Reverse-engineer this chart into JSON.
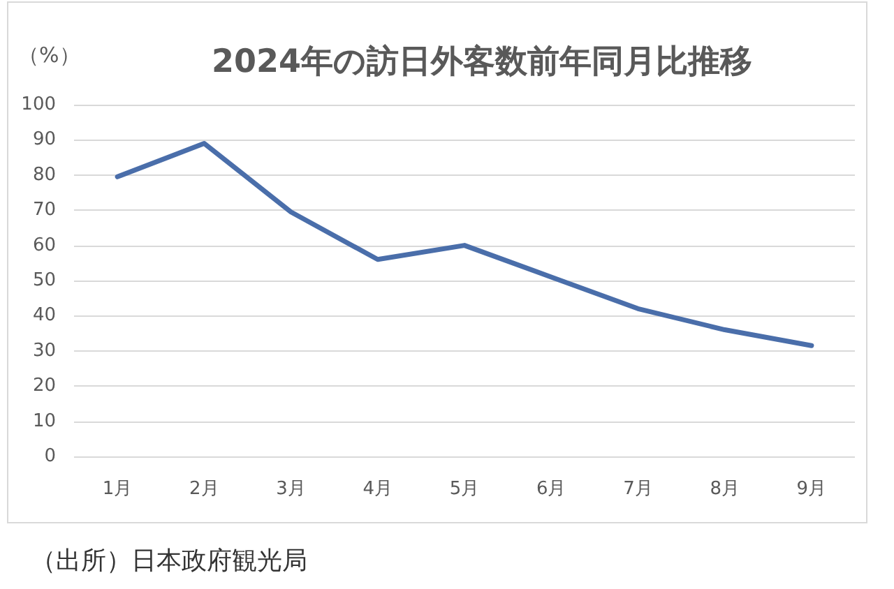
{
  "chart_data": {
    "type": "line",
    "title": "2024年の訪日外客数前年同月比推移",
    "ylabel": "（%）",
    "categories": [
      "1月",
      "2月",
      "3月",
      "4月",
      "5月",
      "6月",
      "7月",
      "8月",
      "9月"
    ],
    "series": [
      {
        "color": "#4a6eaa",
        "values": [
          79.5,
          89,
          69.5,
          56,
          60,
          51,
          42,
          36,
          31.5
        ]
      }
    ],
    "ylim": [
      0,
      100
    ],
    "yticks": [
      0,
      10,
      20,
      30,
      40,
      50,
      60,
      70,
      80,
      90,
      100
    ],
    "grid": "y",
    "marker": "none",
    "line_style": "solid",
    "annotations": [
      "（出所）日本政府観光局"
    ]
  }
}
